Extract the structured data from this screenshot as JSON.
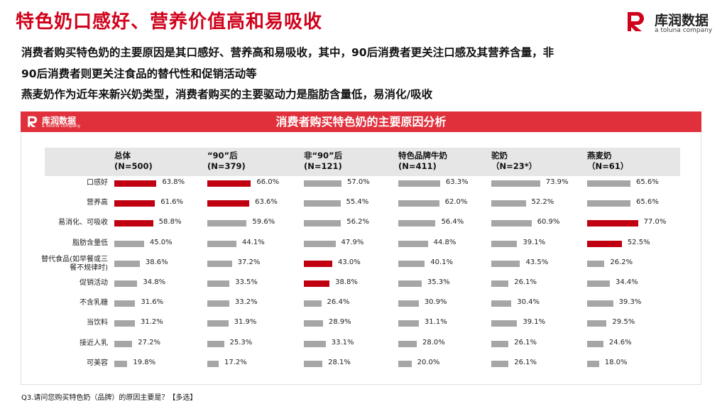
{
  "title": "特色奶口感好、营养价值高和易吸收",
  "brand": {
    "name": "库润数据",
    "sub": "a toluna company",
    "color": "#d0021b"
  },
  "subtitle_lines": [
    "消费者购买特色奶的主要原因是其口感好、营养高和易吸收，其中，90后消费者更关注口感及其营养含量，非",
    "90后消费者则更关注食品的替代性和促销活动等",
    "燕麦奶作为近年来新兴奶类型，消费者购买的主要驱动力是脂肪含量低，易消化/吸收"
  ],
  "panel_title": "消费者购买特色奶的主要原因分析",
  "footnote": "Q3.请问您购买特色奶（品牌）的原因主要是？【多选】",
  "colors": {
    "highlight": "#c00010",
    "normal": "#a6a6a6",
    "header_band": "#e6e6e6",
    "panel_header": "#e0303b"
  },
  "chart_data": {
    "type": "bar",
    "orientation": "horizontal",
    "value_unit": "%",
    "xlim": [
      0,
      100
    ],
    "categories": [
      "口感好",
      "营养高",
      "易消化、可吸收",
      "脂肪含量低",
      "替代食品(如早餐或三餐不规律时)",
      "促销活动",
      "不含乳糖",
      "当饮料",
      "接近人乳",
      "可美容"
    ],
    "series": [
      {
        "name": "总体",
        "n": "(N=500)",
        "values": [
          63.8,
          61.6,
          58.8,
          45.0,
          38.6,
          34.8,
          31.6,
          31.2,
          27.2,
          19.8
        ],
        "labels": [
          "63.8%",
          "61.6%",
          "58.8%",
          "45.0%",
          "38.6%",
          "34.8%",
          "31.6%",
          "31.2%",
          "27.2%",
          "19.8%"
        ],
        "highlight": [
          true,
          true,
          true,
          false,
          false,
          false,
          false,
          false,
          false,
          false
        ]
      },
      {
        "name": "“90”后",
        "n": "(N=379)",
        "values": [
          66.0,
          63.6,
          59.6,
          44.1,
          37.2,
          33.5,
          33.2,
          31.9,
          25.3,
          17.2
        ],
        "labels": [
          "66.0%",
          "63.6%",
          "59.6%",
          "44.1%",
          "37.2%",
          "33.5%",
          "33.2%",
          "31.9%",
          "25.3%",
          "17.2%"
        ],
        "highlight": [
          true,
          true,
          false,
          false,
          false,
          false,
          false,
          false,
          false,
          false
        ]
      },
      {
        "name": "非“90”后",
        "n": "(N=121)",
        "values": [
          57.0,
          55.4,
          56.2,
          47.9,
          43.0,
          38.8,
          26.4,
          28.9,
          33.1,
          28.1
        ],
        "labels": [
          "57.0%",
          "55.4%",
          "56.2%",
          "47.9%",
          "43.0%",
          "38.8%",
          "26.4%",
          "28.9%",
          "33.1%",
          "28.1%"
        ],
        "highlight": [
          false,
          false,
          false,
          false,
          true,
          true,
          false,
          false,
          false,
          false
        ]
      },
      {
        "name": "特色品牌牛奶",
        "n": "(N=411)",
        "values": [
          63.3,
          62.0,
          56.4,
          44.8,
          40.1,
          35.3,
          30.9,
          31.1,
          28.0,
          20.0
        ],
        "labels": [
          "63.3%",
          "62.0%",
          "56.4%",
          "44.8%",
          "40.1%",
          "35.3%",
          "30.9%",
          "31.1%",
          "28.0%",
          "20.0%"
        ],
        "highlight": [
          false,
          false,
          false,
          false,
          false,
          false,
          false,
          false,
          false,
          false
        ]
      },
      {
        "name": "驼奶",
        "n": "（N=23*）",
        "values": [
          73.9,
          52.2,
          60.9,
          39.1,
          43.5,
          26.1,
          30.4,
          39.1,
          26.1,
          26.1
        ],
        "labels": [
          "73.9%",
          "52.2%",
          "60.9%",
          "39.1%",
          "43.5%",
          "26.1%",
          "30.4%",
          "39.1%",
          "26.1%",
          "26.1%"
        ],
        "highlight": [
          false,
          false,
          false,
          false,
          false,
          false,
          false,
          false,
          false,
          false
        ]
      },
      {
        "name": "燕麦奶",
        "n": "（N=61）",
        "values": [
          65.6,
          65.6,
          77.0,
          52.5,
          26.2,
          34.4,
          39.3,
          29.5,
          24.6,
          18.0
        ],
        "labels": [
          "65.6%",
          "65.6%",
          "77.0%",
          "52.5%",
          "26.2%",
          "34.4%",
          "39.3%",
          "29.5%",
          "24.6%",
          "18.0%"
        ],
        "highlight": [
          false,
          false,
          true,
          true,
          false,
          false,
          false,
          false,
          false,
          false
        ]
      }
    ]
  }
}
